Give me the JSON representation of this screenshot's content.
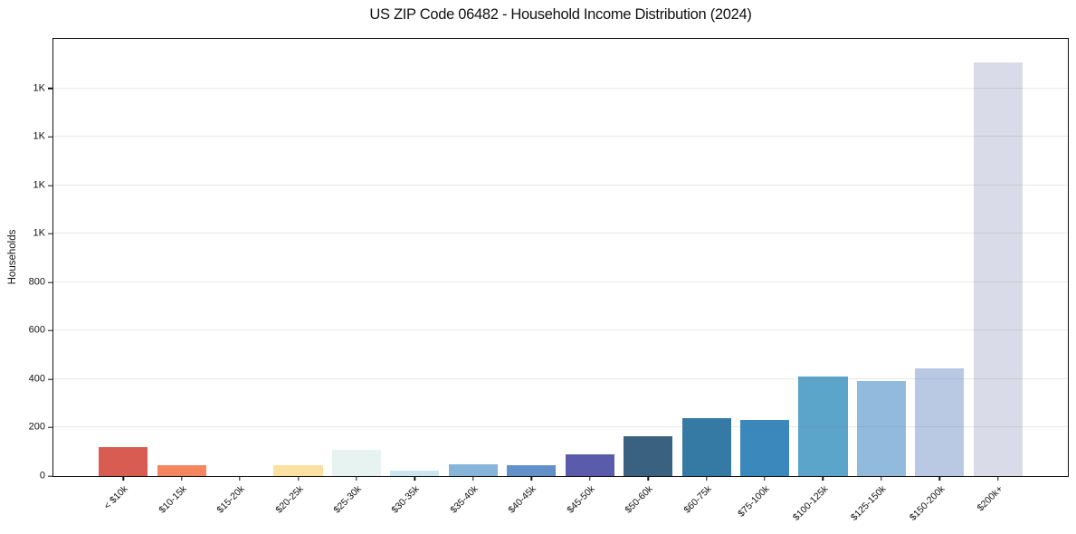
{
  "chart_data": {
    "type": "bar",
    "title": "US ZIP Code 06482 - Household Income Distribution (2024)",
    "xlabel": "",
    "ylabel": "Households",
    "ylim": [
      0,
      1805
    ],
    "grid": "horizontal",
    "legend": "none",
    "background": "#ffffff",
    "spine_color": "#141414",
    "categories": [
      "< $10k",
      "$10-15k",
      "$15-20k",
      "$20-25k",
      "$25-30k",
      "$30-35k",
      "$35-40k",
      "$40-45k",
      "$45-50k",
      "$50-60k",
      "$60-75k",
      "$75-100k",
      "$100-125k",
      "$125-150k",
      "$150-200k",
      "$200k+"
    ],
    "values": [
      120,
      45,
      0,
      45,
      110,
      22,
      48,
      44,
      90,
      165,
      240,
      232,
      410,
      392,
      443,
      1708
    ],
    "bar_colors": [
      "#d85c52",
      "#f4865f",
      "#f8c57c",
      "#fbe2a3",
      "#e7f3f1",
      "#cbe6ee",
      "#87b5da",
      "#6290c9",
      "#5a5cab",
      "#3a617f",
      "#347aa4",
      "#3a88bc",
      "#5aa5c9",
      "#91badc",
      "#b9c9e3",
      "#d9dbe8"
    ],
    "yticks": [
      {
        "value": 0,
        "label": "0"
      },
      {
        "value": 200,
        "label": "200"
      },
      {
        "value": 400,
        "label": "400"
      },
      {
        "value": 600,
        "label": "600"
      },
      {
        "value": 800,
        "label": "800"
      },
      {
        "value": 1000,
        "label": "1K"
      },
      {
        "value": 1200,
        "label": "1K"
      },
      {
        "value": 1400,
        "label": "1K"
      },
      {
        "value": 1600,
        "label": "1K"
      }
    ]
  }
}
